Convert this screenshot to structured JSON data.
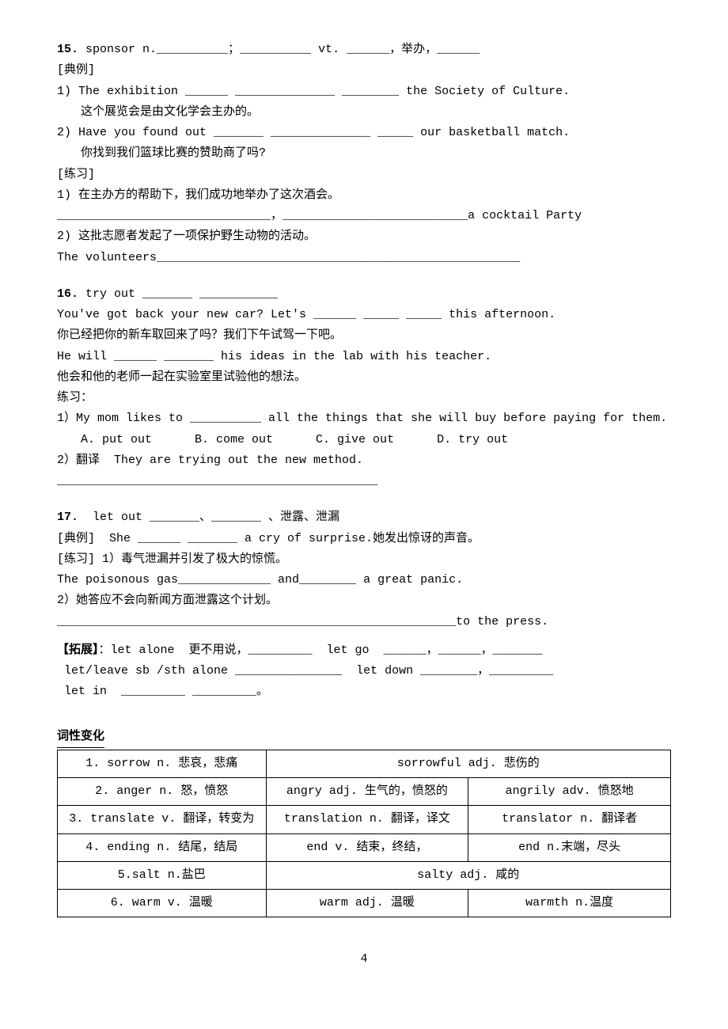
{
  "q15": {
    "title": "15.",
    "head": " sponsor n.__________；__________ vt. ______，举办，______",
    "dianli_label": "[典例]",
    "ex1": "1) The exhibition ______ ______________ ________ the Society of Culture.",
    "ex1_zh": "这个展览会是由文化学会主办的。",
    "ex2": "2) Have you found out _______ ______________ _____ our basketball match.",
    "ex2_zh": "你找到我们篮球比赛的赞助商了吗?",
    "lianxi_label": "[练习]",
    "p1": "1) 在主办方的帮助下，我们成功地举办了这次酒会。",
    "p1_blank": "______________________________，__________________________a cocktail Party",
    "p2": "2) 这批志愿者发起了一项保护野生动物的活动。",
    "p2_blank": "The volunteers___________________________________________________"
  },
  "q16": {
    "title": "16.",
    "head": " try out _______ ___________",
    "l1": "You've got back your new car? Let's ______ _____ _____ this afternoon.",
    "l1_zh": "你已经把你的新车取回来了吗？我们下午试驾一下吧。",
    "l2": "He will ______ _______ his ideas in the lab with his teacher.",
    "l2_zh": "他会和他的老师一起在实验室里试验他的想法。",
    "lianxi_label": "练习：",
    "p1": "1）My mom likes to __________ all the things that she will buy before paying for them.",
    "p1_opts": "A. put out      B. come out      C. give out      D. try out",
    "p2": "2）翻译  They are trying out the new method.",
    "p2_blank": "_____________________________________________"
  },
  "q17": {
    "title": "17.",
    "head": "  let out _______、_______ 、泄露、泄漏",
    "dianli": "[典例]  She ______ _______ a cry of surprise.她发出惊讶的声音。",
    "lianxi": "[练习] 1）毒气泄漏并引发了极大的惊慌。",
    "p1_blank": "The poisonous gas_____________ and________ a great panic.",
    "p2": "2）她答应不会向新闻方面泄露这个计划。",
    "p2_blank": "________________________________________________________to the press.",
    "tuozhan_label": "【拓展】",
    "t1": "：let alone  更不用说，_________  let go  ______，______，_______",
    "t2": " let/leave sb /sth alone _______________  let down ________，_________",
    "t3": " let in  _________ _________。"
  },
  "table": {
    "heading": "词性变化",
    "rows": [
      {
        "c1": "1. sorrow n. 悲哀，悲痛",
        "c2span": "sorrowful adj. 悲伤的"
      },
      {
        "c1": "2. anger n. 怒，愤怒",
        "c2": "angry adj. 生气的，愤怒的",
        "c3": "angrily adv. 愤怒地"
      },
      {
        "c1": "3. translate v. 翻译，转变为",
        "c2": "translation n. 翻译，译文",
        "c3": "translator n. 翻译者"
      },
      {
        "c1": "4. ending n. 结尾，结局",
        "c2": "end v. 结束，终结，",
        "c3": "end n.末端，尽头"
      },
      {
        "c1": "5.salt n.盐巴",
        "c2span": "salty adj. 咸的"
      },
      {
        "c1": "6. warm v. 温暖",
        "c2": "warm adj. 温暖",
        "c3": "warmth n.温度"
      }
    ]
  },
  "page_number": "4"
}
